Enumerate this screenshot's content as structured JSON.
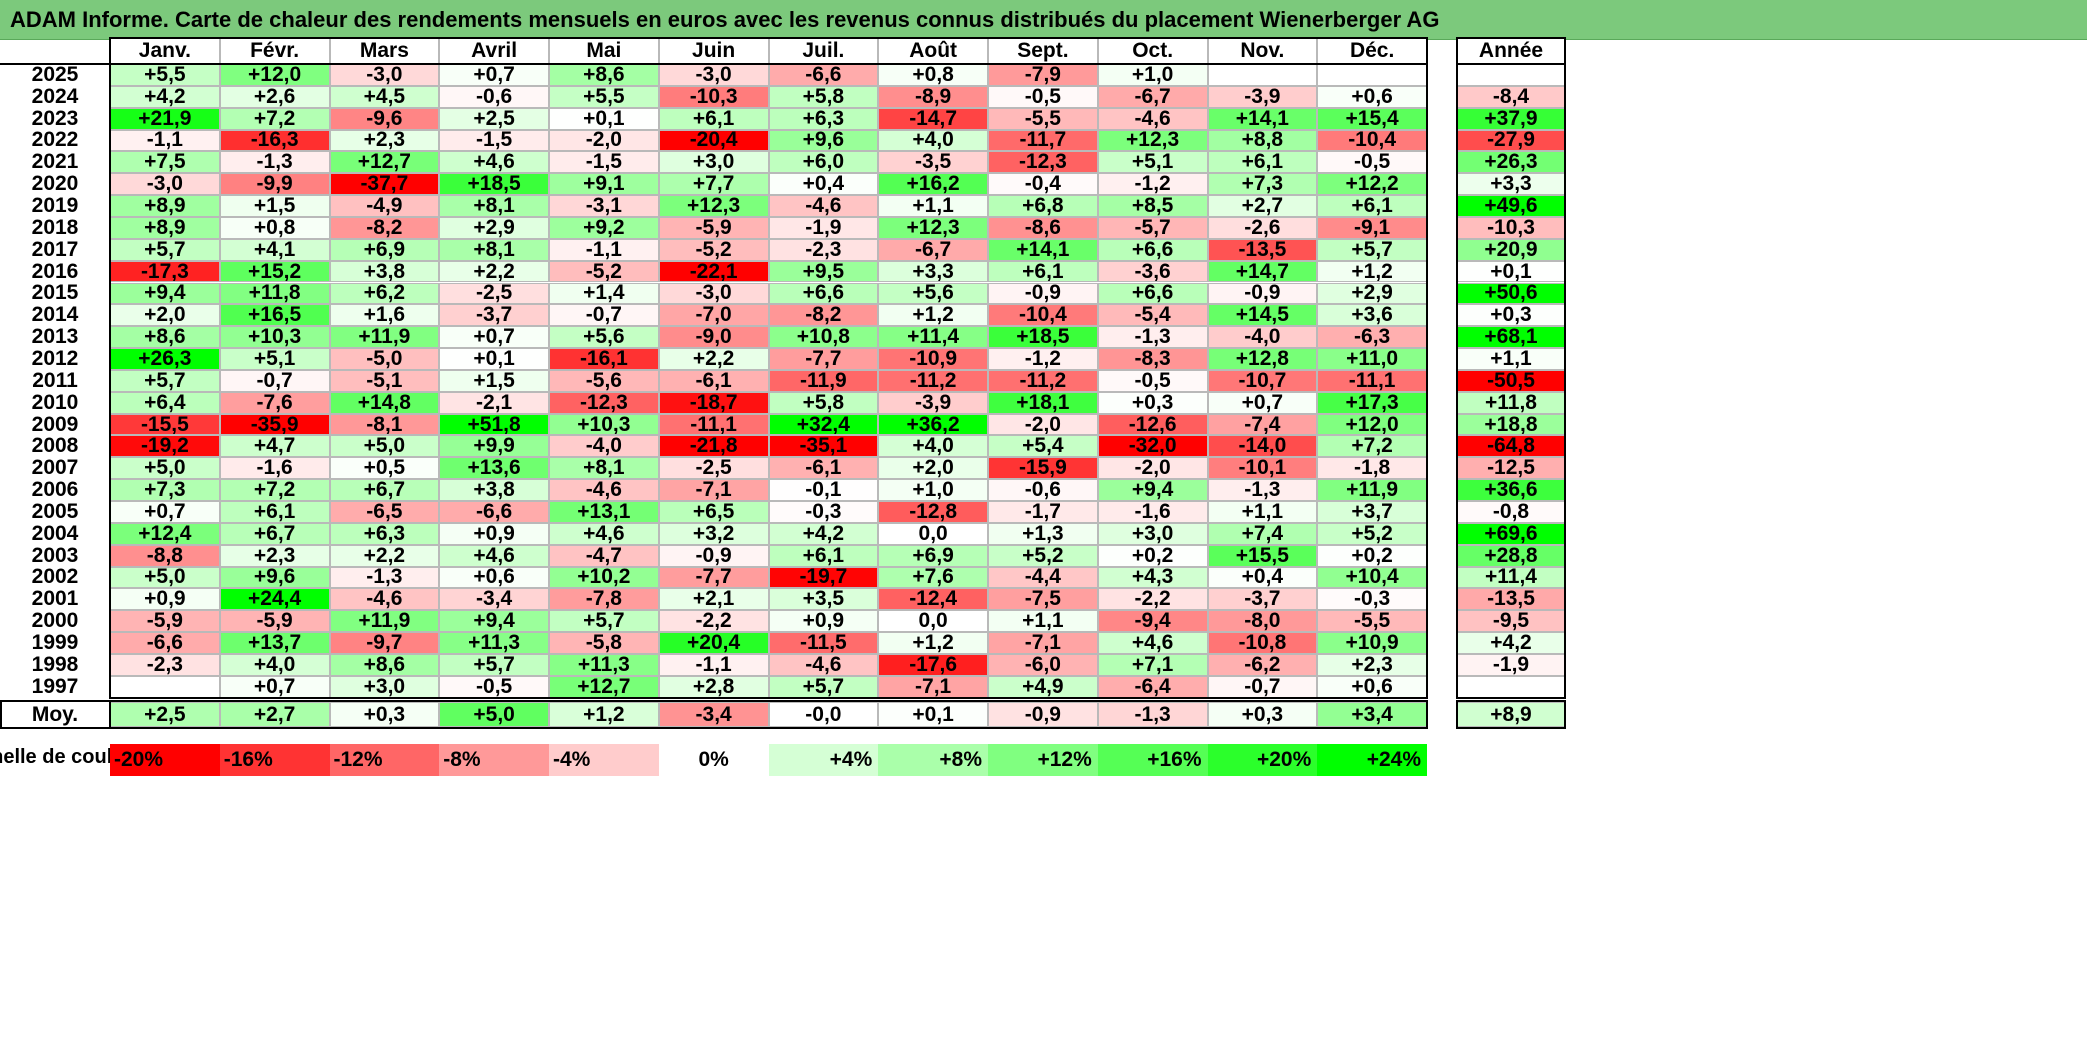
{
  "title": "ADAM Informe. Carte de chaleur des rendements mensuels en euros avec les revenus connus distribués du placement Wienerberger AG",
  "months": [
    "Janv.",
    "Févr.",
    "Mars",
    "Avril",
    "Mai",
    "Juin",
    "Juil.",
    "Août",
    "Sept.",
    "Oct.",
    "Nov.",
    "Déc."
  ],
  "year_header": "Année",
  "avg_label": "Moy.",
  "scale_label": "Echelle de couleur",
  "colors": {
    "neg_max": "#ff0000",
    "neutral": "#ffffff",
    "pos_max": "#00ff00",
    "title_bg": "#7cc97c"
  },
  "chart_data": {
    "type": "heatmap",
    "title": "ADAM Informe. Carte de chaleur des rendements mensuels en euros avec les revenus connus distribués du placement Wienerberger AG",
    "x_categories": [
      "Janv.",
      "Févr.",
      "Mars",
      "Avril",
      "Mai",
      "Juin",
      "Juil.",
      "Août",
      "Sept.",
      "Oct.",
      "Nov.",
      "Déc."
    ],
    "rows": [
      {
        "year": "2025",
        "values": [
          "+5,5",
          "+12,0",
          "-3,0",
          "+0,7",
          "+8,6",
          "-3,0",
          "-6,6",
          "+0,8",
          "-7,9",
          "+1,0",
          "",
          ""
        ],
        "annual": ""
      },
      {
        "year": "2024",
        "values": [
          "+4,2",
          "+2,6",
          "+4,5",
          "-0,6",
          "+5,5",
          "-10,3",
          "+5,8",
          "-8,9",
          "-0,5",
          "-6,7",
          "-3,9",
          "+0,6"
        ],
        "annual": "-8,4"
      },
      {
        "year": "2023",
        "values": [
          "+21,9",
          "+7,2",
          "-9,6",
          "+2,5",
          "+0,1",
          "+6,1",
          "+6,3",
          "-14,7",
          "-5,5",
          "-4,6",
          "+14,1",
          "+15,4"
        ],
        "annual": "+37,9"
      },
      {
        "year": "2022",
        "values": [
          "-1,1",
          "-16,3",
          "+2,3",
          "-1,5",
          "-2,0",
          "-20,4",
          "+9,6",
          "+4,0",
          "-11,7",
          "+12,3",
          "+8,8",
          "-10,4"
        ],
        "annual": "-27,9"
      },
      {
        "year": "2021",
        "values": [
          "+7,5",
          "-1,3",
          "+12,7",
          "+4,6",
          "-1,5",
          "+3,0",
          "+6,0",
          "-3,5",
          "-12,3",
          "+5,1",
          "+6,1",
          "-0,5"
        ],
        "annual": "+26,3"
      },
      {
        "year": "2020",
        "values": [
          "-3,0",
          "-9,9",
          "-37,7",
          "+18,5",
          "+9,1",
          "+7,7",
          "+0,4",
          "+16,2",
          "-0,4",
          "-1,2",
          "+7,3",
          "+12,2"
        ],
        "annual": "+3,3"
      },
      {
        "year": "2019",
        "values": [
          "+8,9",
          "+1,5",
          "-4,9",
          "+8,1",
          "-3,1",
          "+12,3",
          "-4,6",
          "+1,1",
          "+6,8",
          "+8,5",
          "+2,7",
          "+6,1"
        ],
        "annual": "+49,6"
      },
      {
        "year": "2018",
        "values": [
          "+8,9",
          "+0,8",
          "-8,2",
          "+2,9",
          "+9,2",
          "-5,9",
          "-1,9",
          "+12,3",
          "-8,6",
          "-5,7",
          "-2,6",
          "-9,1"
        ],
        "annual": "-10,3"
      },
      {
        "year": "2017",
        "values": [
          "+5,7",
          "+4,1",
          "+6,9",
          "+8,1",
          "-1,1",
          "-5,2",
          "-2,3",
          "-6,7",
          "+14,1",
          "+6,6",
          "-13,5",
          "+5,7"
        ],
        "annual": "+20,9"
      },
      {
        "year": "2016",
        "values": [
          "-17,3",
          "+15,2",
          "+3,8",
          "+2,2",
          "-5,2",
          "-22,1",
          "+9,5",
          "+3,3",
          "+6,1",
          "-3,6",
          "+14,7",
          "+1,2"
        ],
        "annual": "+0,1"
      },
      {
        "year": "2015",
        "values": [
          "+9,4",
          "+11,8",
          "+6,2",
          "-2,5",
          "+1,4",
          "-3,0",
          "+6,6",
          "+5,6",
          "-0,9",
          "+6,6",
          "-0,9",
          "+2,9"
        ],
        "annual": "+50,6"
      },
      {
        "year": "2014",
        "values": [
          "+2,0",
          "+16,5",
          "+1,6",
          "-3,7",
          "-0,7",
          "-7,0",
          "-8,2",
          "+1,2",
          "-10,4",
          "-5,4",
          "+14,5",
          "+3,6"
        ],
        "annual": "+0,3"
      },
      {
        "year": "2013",
        "values": [
          "+8,6",
          "+10,3",
          "+11,9",
          "+0,7",
          "+5,6",
          "-9,0",
          "+10,8",
          "+11,4",
          "+18,5",
          "-1,3",
          "-4,0",
          "-6,3"
        ],
        "annual": "+68,1"
      },
      {
        "year": "2012",
        "values": [
          "+26,3",
          "+5,1",
          "-5,0",
          "+0,1",
          "-16,1",
          "+2,2",
          "-7,7",
          "-10,9",
          "-1,2",
          "-8,3",
          "+12,8",
          "+11,0"
        ],
        "annual": "+1,1"
      },
      {
        "year": "2011",
        "values": [
          "+5,7",
          "-0,7",
          "-5,1",
          "+1,5",
          "-5,6",
          "-6,1",
          "-11,9",
          "-11,2",
          "-11,2",
          "-0,5",
          "-10,7",
          "-11,1"
        ],
        "annual": "-50,5"
      },
      {
        "year": "2010",
        "values": [
          "+6,4",
          "-7,6",
          "+14,8",
          "-2,1",
          "-12,3",
          "-18,7",
          "+5,8",
          "-3,9",
          "+18,1",
          "+0,3",
          "+0,7",
          "+17,3"
        ],
        "annual": "+11,8"
      },
      {
        "year": "2009",
        "values": [
          "-15,5",
          "-35,9",
          "-8,1",
          "+51,8",
          "+10,3",
          "-11,1",
          "+32,4",
          "+36,2",
          "-2,0",
          "-12,6",
          "-7,4",
          "+12,0"
        ],
        "annual": "+18,8"
      },
      {
        "year": "2008",
        "values": [
          "-19,2",
          "+4,7",
          "+5,0",
          "+9,9",
          "-4,0",
          "-21,8",
          "-35,1",
          "+4,0",
          "+5,4",
          "-32,0",
          "-14,0",
          "+7,2"
        ],
        "annual": "-64,8"
      },
      {
        "year": "2007",
        "values": [
          "+5,0",
          "-1,6",
          "+0,5",
          "+13,6",
          "+8,1",
          "-2,5",
          "-6,1",
          "+2,0",
          "-15,9",
          "-2,0",
          "-10,1",
          "-1,8"
        ],
        "annual": "-12,5"
      },
      {
        "year": "2006",
        "values": [
          "+7,3",
          "+7,2",
          "+6,7",
          "+3,8",
          "-4,6",
          "-7,1",
          "-0,1",
          "+1,0",
          "-0,6",
          "+9,4",
          "-1,3",
          "+11,9"
        ],
        "annual": "+36,6"
      },
      {
        "year": "2005",
        "values": [
          "+0,7",
          "+6,1",
          "-6,5",
          "-6,6",
          "+13,1",
          "+6,5",
          "-0,3",
          "-12,8",
          "-1,7",
          "-1,6",
          "+1,1",
          "+3,7"
        ],
        "annual": "-0,8"
      },
      {
        "year": "2004",
        "values": [
          "+12,4",
          "+6,7",
          "+6,3",
          "+0,9",
          "+4,6",
          "+3,2",
          "+4,2",
          "0,0",
          "+1,3",
          "+3,0",
          "+7,4",
          "+5,2"
        ],
        "annual": "+69,6"
      },
      {
        "year": "2003",
        "values": [
          "-8,8",
          "+2,3",
          "+2,2",
          "+4,6",
          "-4,7",
          "-0,9",
          "+6,1",
          "+6,9",
          "+5,2",
          "+0,2",
          "+15,5",
          "+0,2"
        ],
        "annual": "+28,8"
      },
      {
        "year": "2002",
        "values": [
          "+5,0",
          "+9,6",
          "-1,3",
          "+0,6",
          "+10,2",
          "-7,7",
          "-19,7",
          "+7,6",
          "-4,4",
          "+4,3",
          "+0,4",
          "+10,4"
        ],
        "annual": "+11,4"
      },
      {
        "year": "2001",
        "values": [
          "+0,9",
          "+24,4",
          "-4,6",
          "-3,4",
          "-7,8",
          "+2,1",
          "+3,5",
          "-12,4",
          "-7,5",
          "-2,2",
          "-3,7",
          "-0,3"
        ],
        "annual": "-13,5"
      },
      {
        "year": "2000",
        "values": [
          "-5,9",
          "-5,9",
          "+11,9",
          "+9,4",
          "+5,7",
          "-2,2",
          "+0,9",
          "0,0",
          "+1,1",
          "-9,4",
          "-8,0",
          "-5,5"
        ],
        "annual": "-9,5"
      },
      {
        "year": "1999",
        "values": [
          "-6,6",
          "+13,7",
          "-9,7",
          "+11,3",
          "-5,8",
          "+20,4",
          "-11,5",
          "+1,2",
          "-7,1",
          "+4,6",
          "-10,8",
          "+10,9"
        ],
        "annual": "+4,2"
      },
      {
        "year": "1998",
        "values": [
          "-2,3",
          "+4,0",
          "+8,6",
          "+5,7",
          "+11,3",
          "-1,1",
          "-4,6",
          "-17,6",
          "-6,0",
          "+7,1",
          "-6,2",
          "+2,3"
        ],
        "annual": "-1,9"
      },
      {
        "year": "1997",
        "values": [
          "",
          "+0,7",
          "+3,0",
          "-0,5",
          "+12,7",
          "+2,8",
          "+5,7",
          "-7,1",
          "+4,9",
          "-6,4",
          "-0,7",
          "+0,6"
        ],
        "annual": ""
      }
    ],
    "averages": [
      "+2,5",
      "+2,7",
      "+0,3",
      "+5,0",
      "+1,2",
      "-3,4",
      "-0,0",
      "+0,1",
      "-0,9",
      "-1,3",
      "+0,3",
      "+3,4"
    ],
    "average_annual": "+8,9",
    "color_scale": [
      "-20%",
      "-16%",
      "-12%",
      "-8%",
      "-4%",
      "0%",
      "+4%",
      "+8%",
      "+12%",
      "+16%",
      "+20%",
      "+24%"
    ],
    "color_scale_values": [
      -20,
      -16,
      -12,
      -8,
      -4,
      0,
      4,
      8,
      12,
      16,
      20,
      24
    ],
    "monthly_color_range": [
      -20,
      24
    ],
    "annual_color_range": [
      -40,
      48
    ]
  }
}
